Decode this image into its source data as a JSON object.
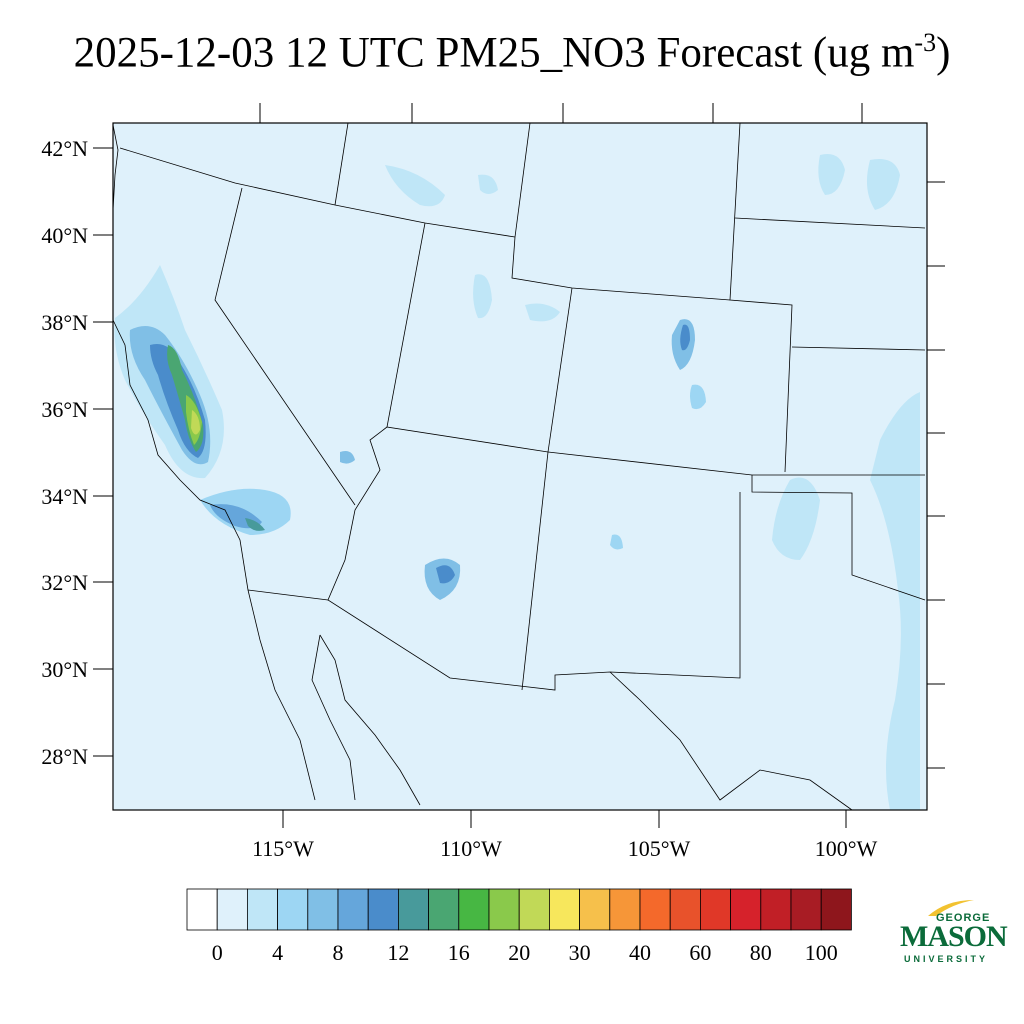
{
  "title": {
    "main": "2025-12-03 12 UTC PM25_NO3 Forecast (ug m",
    "superscript": "-3",
    "close": ")"
  },
  "map": {
    "lat_labels": [
      "42°N",
      "40°N",
      "38°N",
      "36°N",
      "34°N",
      "32°N",
      "30°N",
      "28°N"
    ],
    "lon_labels": [
      "115°W",
      "110°W",
      "105°W",
      "100°W"
    ],
    "background_color": "#dff1fb"
  },
  "colorbar": {
    "colors": [
      "#ffffff",
      "#dff1fb",
      "#bfe6f7",
      "#9dd6f3",
      "#80bfe6",
      "#65a6db",
      "#4a8ccb",
      "#489a9b",
      "#4aa672",
      "#47b743",
      "#8ac94b",
      "#c1d957",
      "#f7e75c",
      "#f6c04b",
      "#f69638",
      "#f4692b",
      "#e8522b",
      "#e03828",
      "#d6222b",
      "#c11f26",
      "#a81c24",
      "#8e161c"
    ],
    "labels": [
      "0",
      "4",
      "8",
      "12",
      "16",
      "20",
      "30",
      "40",
      "60",
      "80",
      "100"
    ]
  },
  "logo": {
    "line1": "GEORGE",
    "line2": "MASON",
    "line3": "UNIVERSITY",
    "color": "#0b6b3a"
  }
}
